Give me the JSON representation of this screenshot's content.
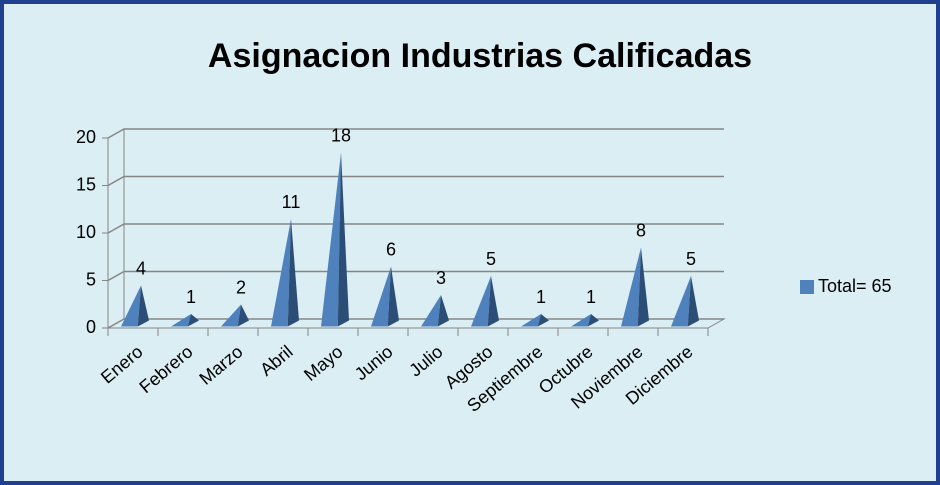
{
  "chart_data": {
    "type": "bar",
    "title": "Asignacion Industrias Calificadas",
    "categories": [
      "Enero",
      "Febrero",
      "Marzo",
      "Abril",
      "Mayo",
      "Junio",
      "Julio",
      "Agosto",
      "Septiembre",
      "Octubre",
      "Noviembre",
      "Diciembre"
    ],
    "series": [
      {
        "name": "Total= 65",
        "color": "#4f81bd",
        "values": [
          4,
          1,
          2,
          11,
          18,
          6,
          3,
          5,
          1,
          1,
          8,
          5
        ]
      }
    ],
    "ylim": [
      0,
      20
    ],
    "yticks": [
      0,
      5,
      10,
      15,
      20
    ],
    "grid": true,
    "legend": "right",
    "data_labels": true
  }
}
